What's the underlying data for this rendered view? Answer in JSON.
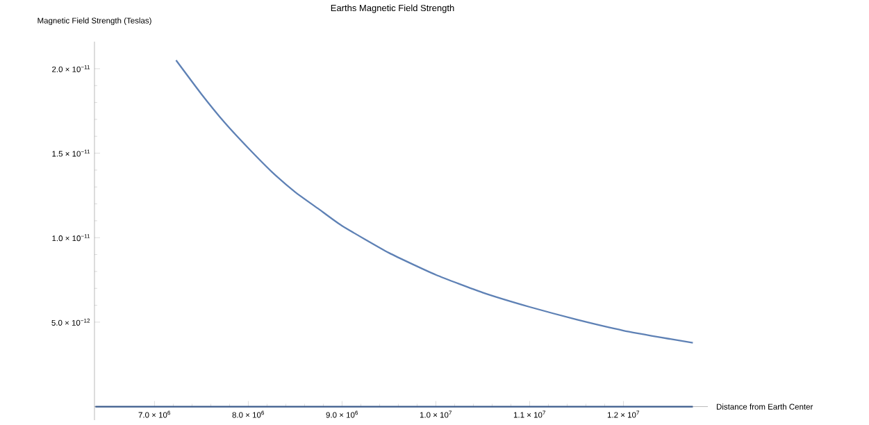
{
  "chart_data": {
    "type": "line",
    "title": "Earths Magnetic Field Strength",
    "xlabel": "Distance from Earth Center",
    "ylabel": "Magnetic Field Strength (Teslas)",
    "xlim": [
      6360000,
      12900000
    ],
    "ylim": [
      -8e-13,
      2.16e-11
    ],
    "xticks": [
      {
        "value": 7000000,
        "label": "7.0 × 10$^{6}$"
      },
      {
        "value": 8000000,
        "label": "8.0 × 10$^{6}$"
      },
      {
        "value": 9000000,
        "label": "9.0 × 10$^{6}$"
      },
      {
        "value": 10000000,
        "label": "1.0 × 10$^{7}$"
      },
      {
        "value": 11000000,
        "label": "1.1 × 10$^{7}$"
      },
      {
        "value": 12000000,
        "label": "1.2 × 10$^{7}$"
      }
    ],
    "yticks": [
      {
        "value": 5e-12,
        "label": "5.0 × 10$^{−12}$"
      },
      {
        "value": 1e-11,
        "label": "1.0 × 10$^{−11}$"
      },
      {
        "value": 1.5e-11,
        "label": "1.5 × 10$^{−11}$"
      },
      {
        "value": 2e-11,
        "label": "2.0 × 10$^{−11}$"
      }
    ],
    "grid": false,
    "marker": "none",
    "line_style": "solid",
    "series": [
      {
        "color": "#5e81b5",
        "x": [
          7230000,
          7500000,
          7750000,
          8000000,
          8250000,
          8500000,
          8750000,
          9000000,
          9500000,
          10000000,
          10500000,
          11000000,
          11500000,
          12000000,
          12500000,
          12740000
        ],
        "values": [
          2.05e-11,
          1.85e-11,
          1.68e-11,
          1.53e-11,
          1.39e-11,
          1.27e-11,
          1.17e-11,
          1.07e-11,
          9.1e-12,
          7.8e-12,
          6.75e-12,
          5.9e-12,
          5.15e-12,
          4.5e-12,
          4e-12,
          3.78e-12
        ]
      },
      {
        "color": "#3b5b8c",
        "x": [
          6370000,
          12740000
        ],
        "values": [
          0,
          0
        ]
      }
    ]
  }
}
